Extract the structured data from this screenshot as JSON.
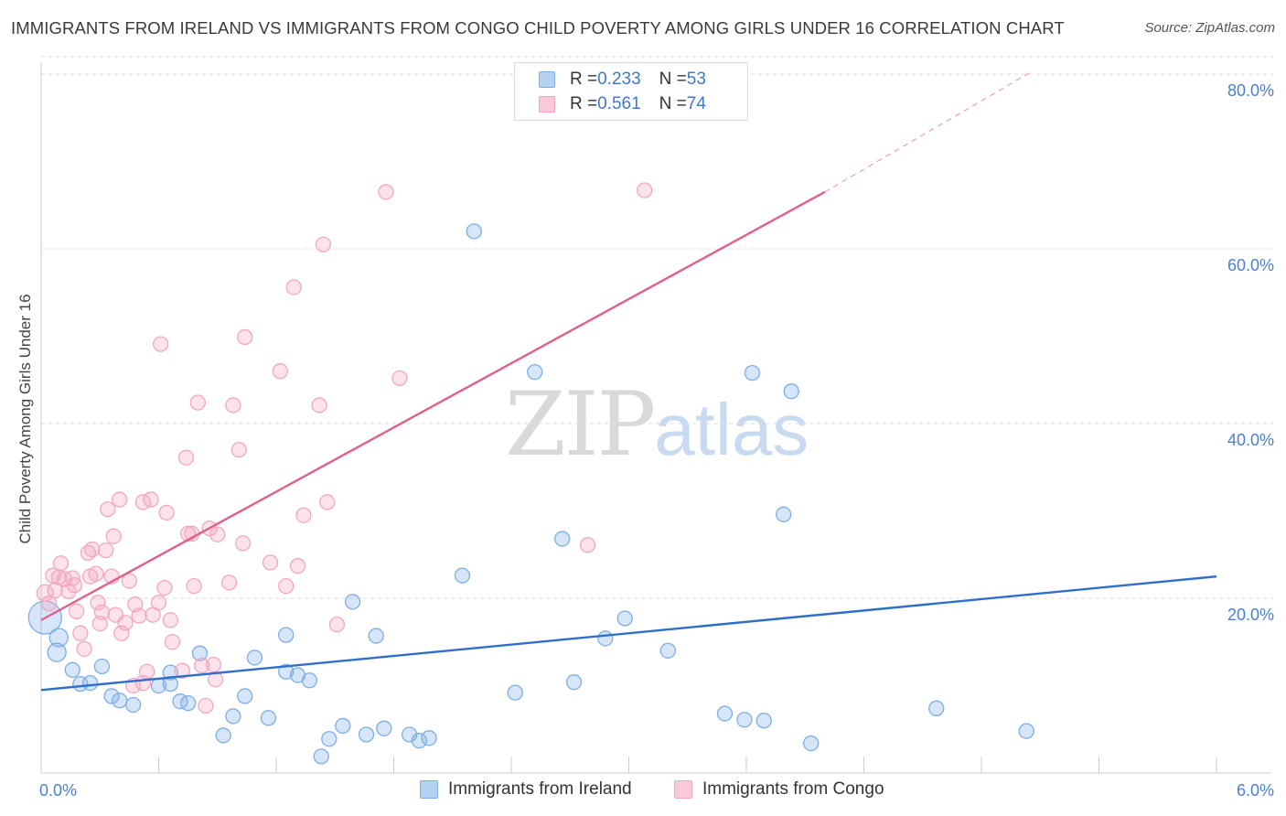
{
  "title": "IMMIGRANTS FROM IRELAND VS IMMIGRANTS FROM CONGO CHILD POVERTY AMONG GIRLS UNDER 16 CORRELATION CHART",
  "source": "Source: ZipAtlas.com",
  "watermark": {
    "zip": "ZIP",
    "atlas": "atlas"
  },
  "legend": {
    "rows": [
      {
        "r_label": "R = ",
        "r_value": "0.233",
        "n_label": "N = ",
        "n_value": "53"
      },
      {
        "r_label": "R = ",
        "r_value": "0.561",
        "n_label": "N = ",
        "n_value": "74"
      }
    ]
  },
  "chart_data": {
    "type": "scatter",
    "title": "IMMIGRANTS FROM IRELAND VS IMMIGRANTS FROM CONGO CHILD POVERTY AMONG GIRLS UNDER 16 CORRELATION CHART",
    "xlabel": "",
    "ylabel": "Child Poverty Among Girls Under 16",
    "xlim": [
      0,
      6
    ],
    "ylim": [
      0,
      82
    ],
    "x_tick_labels": [
      "0.0%",
      "6.0%"
    ],
    "y_ticks": [
      20,
      40,
      60,
      80
    ],
    "y_tick_labels": [
      "20.0%",
      "40.0%",
      "60.0%",
      "80.0%"
    ],
    "grid": true,
    "legend_position": "top-center",
    "series": [
      {
        "name": "Immigrants from Ireland",
        "color": "#7eaee6",
        "line_color": "#2f6fcb",
        "r": 0.233,
        "n": 53,
        "trend": {
          "x": [
            0,
            6
          ],
          "y": [
            9.5,
            22.5
          ],
          "dashed_extension": false
        },
        "points": [
          [
            0.02,
            17.8,
            18
          ],
          [
            0.09,
            15.5,
            10
          ],
          [
            0.08,
            13.8,
            10
          ],
          [
            0.2,
            10.2,
            8
          ],
          [
            0.31,
            12.2,
            8
          ],
          [
            0.25,
            10.3,
            8
          ],
          [
            0.36,
            8.8,
            8
          ],
          [
            0.4,
            8.3,
            8
          ],
          [
            0.47,
            7.8,
            8
          ],
          [
            0.6,
            10.0,
            8
          ],
          [
            0.66,
            11.5,
            8
          ],
          [
            0.66,
            10.2,
            8
          ],
          [
            0.71,
            8.2,
            8
          ],
          [
            0.75,
            8.0,
            8
          ],
          [
            0.81,
            13.7,
            8
          ],
          [
            0.93,
            4.3,
            8
          ],
          [
            0.98,
            6.5,
            8
          ],
          [
            1.04,
            8.8,
            8
          ],
          [
            1.09,
            13.2,
            8
          ],
          [
            1.16,
            6.3,
            8
          ],
          [
            1.25,
            11.6,
            8
          ],
          [
            1.25,
            15.8,
            8
          ],
          [
            1.31,
            11.2,
            8
          ],
          [
            1.37,
            10.6,
            8
          ],
          [
            1.43,
            1.9,
            8
          ],
          [
            1.47,
            3.9,
            8
          ],
          [
            1.54,
            5.4,
            8
          ],
          [
            1.59,
            19.6,
            8
          ],
          [
            1.66,
            4.4,
            8
          ],
          [
            1.71,
            15.7,
            8
          ],
          [
            1.75,
            5.1,
            8
          ],
          [
            1.88,
            4.4,
            8
          ],
          [
            1.93,
            3.7,
            8
          ],
          [
            1.98,
            4.0,
            8
          ],
          [
            2.15,
            22.6,
            8
          ],
          [
            2.21,
            62.0,
            8
          ],
          [
            2.42,
            9.2,
            8
          ],
          [
            2.52,
            45.9,
            8
          ],
          [
            2.66,
            26.8,
            8
          ],
          [
            2.72,
            10.4,
            8
          ],
          [
            2.88,
            15.4,
            8
          ],
          [
            2.98,
            17.7,
            8
          ],
          [
            3.2,
            14.0,
            8
          ],
          [
            3.49,
            6.8,
            8
          ],
          [
            3.59,
            6.1,
            8
          ],
          [
            3.63,
            45.8,
            8
          ],
          [
            3.69,
            6.0,
            8
          ],
          [
            3.79,
            29.6,
            8
          ],
          [
            3.83,
            43.7,
            8
          ],
          [
            3.93,
            3.4,
            8
          ],
          [
            4.57,
            7.4,
            8
          ],
          [
            5.03,
            4.8,
            8
          ],
          [
            0.16,
            11.8,
            8
          ]
        ]
      },
      {
        "name": "Immigrants from Congo",
        "color": "#f4a6c0",
        "line_color": "#e0608c",
        "r": 0.561,
        "n": 74,
        "trend": {
          "x": [
            0,
            4.0
          ],
          "y": [
            17.5,
            66.5
          ],
          "dashed_to": [
            5.05,
            80.2
          ]
        },
        "points": [
          [
            0.02,
            20.6,
            9
          ],
          [
            0.04,
            19.4,
            8
          ],
          [
            0.06,
            22.6,
            8
          ],
          [
            0.07,
            20.9,
            8
          ],
          [
            0.09,
            22.4,
            8
          ],
          [
            0.1,
            24.0,
            8
          ],
          [
            0.12,
            22.2,
            8
          ],
          [
            0.14,
            20.8,
            8
          ],
          [
            0.16,
            22.3,
            8
          ],
          [
            0.17,
            21.5,
            8
          ],
          [
            0.18,
            18.5,
            8
          ],
          [
            0.2,
            16.0,
            8
          ],
          [
            0.22,
            14.2,
            8
          ],
          [
            0.24,
            25.2,
            8
          ],
          [
            0.25,
            22.5,
            8
          ],
          [
            0.26,
            25.6,
            8
          ],
          [
            0.28,
            22.8,
            8
          ],
          [
            0.29,
            19.5,
            8
          ],
          [
            0.3,
            17.1,
            8
          ],
          [
            0.31,
            18.4,
            8
          ],
          [
            0.33,
            25.5,
            8
          ],
          [
            0.34,
            30.2,
            8
          ],
          [
            0.36,
            22.5,
            8
          ],
          [
            0.37,
            27.1,
            8
          ],
          [
            0.38,
            18.1,
            8
          ],
          [
            0.4,
            31.3,
            8
          ],
          [
            0.41,
            16.0,
            8
          ],
          [
            0.43,
            17.2,
            8
          ],
          [
            0.45,
            22.0,
            8
          ],
          [
            0.47,
            10.0,
            8
          ],
          [
            0.48,
            19.3,
            8
          ],
          [
            0.5,
            18.0,
            8
          ],
          [
            0.52,
            10.3,
            8
          ],
          [
            0.52,
            31.0,
            8
          ],
          [
            0.54,
            11.6,
            8
          ],
          [
            0.56,
            31.3,
            8
          ],
          [
            0.57,
            18.1,
            8
          ],
          [
            0.6,
            19.5,
            8
          ],
          [
            0.61,
            49.1,
            8
          ],
          [
            0.63,
            21.2,
            8
          ],
          [
            0.64,
            29.8,
            8
          ],
          [
            0.66,
            17.5,
            8
          ],
          [
            0.67,
            15.0,
            8
          ],
          [
            0.72,
            11.7,
            8
          ],
          [
            0.74,
            36.1,
            8
          ],
          [
            0.75,
            27.4,
            8
          ],
          [
            0.77,
            27.4,
            8
          ],
          [
            0.78,
            21.4,
            8
          ],
          [
            0.8,
            42.4,
            8
          ],
          [
            0.82,
            12.3,
            8
          ],
          [
            0.84,
            7.7,
            8
          ],
          [
            0.86,
            28.0,
            8
          ],
          [
            0.88,
            12.4,
            8
          ],
          [
            0.89,
            10.7,
            8
          ],
          [
            0.9,
            27.3,
            8
          ],
          [
            0.96,
            21.8,
            8
          ],
          [
            0.98,
            42.1,
            8
          ],
          [
            1.01,
            37.0,
            8
          ],
          [
            1.03,
            26.3,
            8
          ],
          [
            1.04,
            49.9,
            8
          ],
          [
            1.17,
            24.1,
            8
          ],
          [
            1.22,
            46.0,
            8
          ],
          [
            1.25,
            21.4,
            8
          ],
          [
            1.29,
            55.6,
            8
          ],
          [
            1.31,
            23.7,
            8
          ],
          [
            1.34,
            29.5,
            8
          ],
          [
            1.42,
            42.1,
            8
          ],
          [
            1.44,
            60.5,
            8
          ],
          [
            1.46,
            31.0,
            8
          ],
          [
            1.51,
            17.0,
            8
          ],
          [
            1.76,
            66.5,
            8
          ],
          [
            1.83,
            45.2,
            8
          ],
          [
            2.79,
            26.1,
            8
          ],
          [
            3.08,
            66.7,
            8
          ]
        ]
      }
    ]
  }
}
